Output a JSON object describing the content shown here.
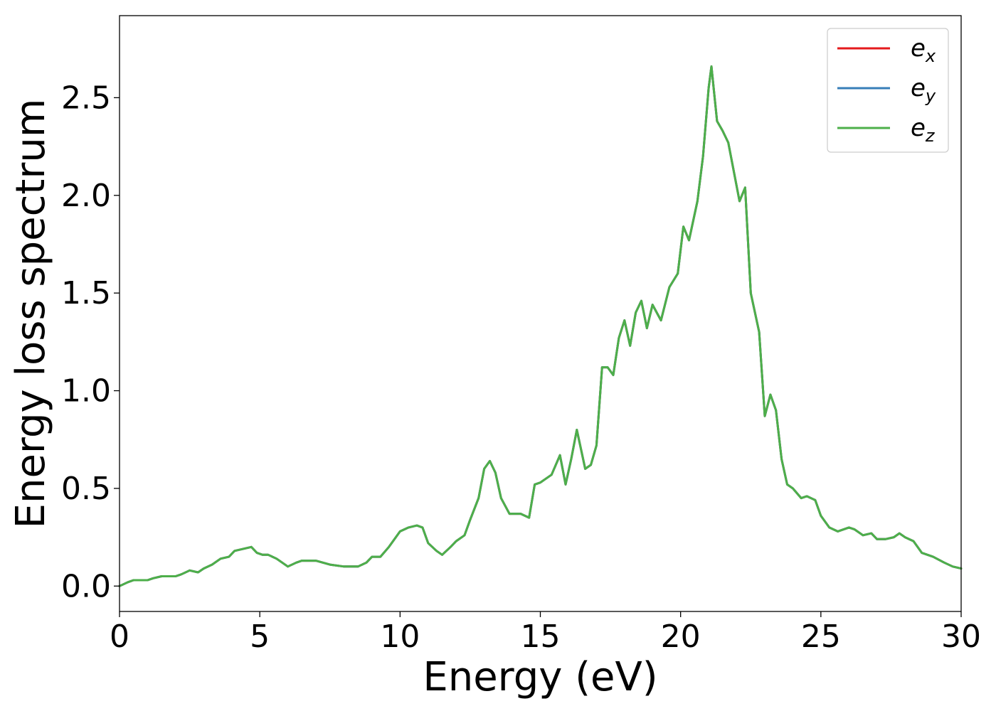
{
  "chart_data": {
    "type": "line",
    "xlabel": "Energy (eV)",
    "ylabel": "Energy loss spectrum",
    "xlim": [
      0,
      30
    ],
    "ylim": [
      -0.13,
      2.92
    ],
    "xticks": [
      0,
      5,
      10,
      15,
      20,
      25,
      30
    ],
    "yticks": [
      0.0,
      0.5,
      1.0,
      1.5,
      2.0,
      2.5
    ],
    "xtick_labels": [
      "0",
      "5",
      "10",
      "15",
      "20",
      "25",
      "30"
    ],
    "ytick_labels": [
      "0.0",
      "0.5",
      "1.0",
      "1.5",
      "2.0",
      "2.5"
    ],
    "grid": false,
    "legend_position": "top-right",
    "series": [
      {
        "name": "ex",
        "label_main": "e",
        "label_sub": "x",
        "color": "#e41a1c",
        "x": [
          0,
          0.3,
          0.5,
          0.7,
          1.0,
          1.2,
          1.5,
          1.7,
          2.0,
          2.2,
          2.5,
          2.8,
          3.0,
          3.3,
          3.6,
          3.9,
          4.1,
          4.4,
          4.7,
          4.9,
          5.1,
          5.3,
          5.6,
          5.8,
          6.0,
          6.3,
          6.5,
          7.0,
          7.5,
          8.0,
          8.5,
          8.8,
          9.0,
          9.3,
          9.6,
          10.0,
          10.3,
          10.6,
          10.8,
          11.0,
          11.3,
          11.5,
          11.8,
          12.0,
          12.3,
          12.5,
          12.8,
          13.0,
          13.2,
          13.4,
          13.6,
          13.9,
          14.1,
          14.3,
          14.6,
          14.8,
          15.0,
          15.2,
          15.4,
          15.7,
          15.9,
          16.1,
          16.3,
          16.6,
          16.8,
          17.0,
          17.2,
          17.4,
          17.6,
          17.8,
          18.0,
          18.2,
          18.4,
          18.6,
          18.8,
          19.0,
          19.3,
          19.6,
          19.9,
          20.1,
          20.3,
          20.6,
          20.8,
          21.0,
          21.1,
          21.3,
          21.5,
          21.7,
          21.9,
          22.1,
          22.3,
          22.5,
          22.8,
          23.0,
          23.2,
          23.4,
          23.6,
          23.8,
          24.0,
          24.3,
          24.5,
          24.8,
          25.0,
          25.3,
          25.6,
          26.0,
          26.2,
          26.5,
          26.8,
          27.0,
          27.3,
          27.6,
          27.8,
          28.0,
          28.3,
          28.6,
          29.0,
          29.4,
          29.7,
          30.0
        ],
        "values": [
          0.0,
          0.02,
          0.03,
          0.03,
          0.03,
          0.04,
          0.05,
          0.05,
          0.05,
          0.06,
          0.08,
          0.07,
          0.09,
          0.11,
          0.14,
          0.15,
          0.18,
          0.19,
          0.2,
          0.17,
          0.16,
          0.16,
          0.14,
          0.12,
          0.1,
          0.12,
          0.13,
          0.13,
          0.11,
          0.1,
          0.1,
          0.12,
          0.15,
          0.15,
          0.2,
          0.28,
          0.3,
          0.31,
          0.3,
          0.22,
          0.18,
          0.16,
          0.2,
          0.23,
          0.26,
          0.34,
          0.45,
          0.6,
          0.64,
          0.58,
          0.45,
          0.37,
          0.37,
          0.37,
          0.35,
          0.52,
          0.53,
          0.55,
          0.57,
          0.67,
          0.52,
          0.65,
          0.8,
          0.6,
          0.62,
          0.72,
          1.12,
          1.12,
          1.08,
          1.27,
          1.36,
          1.23,
          1.4,
          1.46,
          1.32,
          1.44,
          1.36,
          1.53,
          1.6,
          1.84,
          1.77,
          1.97,
          2.2,
          2.55,
          2.66,
          2.38,
          2.33,
          2.27,
          2.12,
          1.97,
          2.04,
          1.5,
          1.3,
          0.87,
          0.98,
          0.9,
          0.65,
          0.52,
          0.5,
          0.45,
          0.46,
          0.44,
          0.36,
          0.3,
          0.28,
          0.3,
          0.29,
          0.26,
          0.27,
          0.24,
          0.24,
          0.25,
          0.27,
          0.25,
          0.23,
          0.17,
          0.15,
          0.12,
          0.1,
          0.09
        ]
      },
      {
        "name": "ey",
        "label_main": "e",
        "label_sub": "y",
        "color": "#377eb8",
        "x": [
          0,
          0.3,
          0.5,
          0.7,
          1.0,
          1.2,
          1.5,
          1.7,
          2.0,
          2.2,
          2.5,
          2.8,
          3.0,
          3.3,
          3.6,
          3.9,
          4.1,
          4.4,
          4.7,
          4.9,
          5.1,
          5.3,
          5.6,
          5.8,
          6.0,
          6.3,
          6.5,
          7.0,
          7.5,
          8.0,
          8.5,
          8.8,
          9.0,
          9.3,
          9.6,
          10.0,
          10.3,
          10.6,
          10.8,
          11.0,
          11.3,
          11.5,
          11.8,
          12.0,
          12.3,
          12.5,
          12.8,
          13.0,
          13.2,
          13.4,
          13.6,
          13.9,
          14.1,
          14.3,
          14.6,
          14.8,
          15.0,
          15.2,
          15.4,
          15.7,
          15.9,
          16.1,
          16.3,
          16.6,
          16.8,
          17.0,
          17.2,
          17.4,
          17.6,
          17.8,
          18.0,
          18.2,
          18.4,
          18.6,
          18.8,
          19.0,
          19.3,
          19.6,
          19.9,
          20.1,
          20.3,
          20.6,
          20.8,
          21.0,
          21.1,
          21.3,
          21.5,
          21.7,
          21.9,
          22.1,
          22.3,
          22.5,
          22.8,
          23.0,
          23.2,
          23.4,
          23.6,
          23.8,
          24.0,
          24.3,
          24.5,
          24.8,
          25.0,
          25.3,
          25.6,
          26.0,
          26.2,
          26.5,
          26.8,
          27.0,
          27.3,
          27.6,
          27.8,
          28.0,
          28.3,
          28.6,
          29.0,
          29.4,
          29.7,
          30.0
        ],
        "values": [
          0.0,
          0.02,
          0.03,
          0.03,
          0.03,
          0.04,
          0.05,
          0.05,
          0.05,
          0.06,
          0.08,
          0.07,
          0.09,
          0.11,
          0.14,
          0.15,
          0.18,
          0.19,
          0.2,
          0.17,
          0.16,
          0.16,
          0.14,
          0.12,
          0.1,
          0.12,
          0.13,
          0.13,
          0.11,
          0.1,
          0.1,
          0.12,
          0.15,
          0.15,
          0.2,
          0.28,
          0.3,
          0.31,
          0.3,
          0.22,
          0.18,
          0.16,
          0.2,
          0.23,
          0.26,
          0.34,
          0.45,
          0.6,
          0.64,
          0.58,
          0.45,
          0.37,
          0.37,
          0.37,
          0.35,
          0.52,
          0.53,
          0.55,
          0.57,
          0.67,
          0.52,
          0.65,
          0.8,
          0.6,
          0.62,
          0.72,
          1.12,
          1.12,
          1.08,
          1.27,
          1.36,
          1.23,
          1.4,
          1.46,
          1.32,
          1.44,
          1.36,
          1.53,
          1.6,
          1.84,
          1.77,
          1.97,
          2.2,
          2.55,
          2.66,
          2.38,
          2.33,
          2.27,
          2.12,
          1.97,
          2.04,
          1.5,
          1.3,
          0.87,
          0.98,
          0.9,
          0.65,
          0.52,
          0.5,
          0.45,
          0.46,
          0.44,
          0.36,
          0.3,
          0.28,
          0.3,
          0.29,
          0.26,
          0.27,
          0.24,
          0.24,
          0.25,
          0.27,
          0.25,
          0.23,
          0.17,
          0.15,
          0.12,
          0.1,
          0.09
        ]
      },
      {
        "name": "ez",
        "label_main": "e",
        "label_sub": "z",
        "color": "#4daf4a",
        "x": [
          0,
          0.3,
          0.5,
          0.7,
          1.0,
          1.2,
          1.5,
          1.7,
          2.0,
          2.2,
          2.5,
          2.8,
          3.0,
          3.3,
          3.6,
          3.9,
          4.1,
          4.4,
          4.7,
          4.9,
          5.1,
          5.3,
          5.6,
          5.8,
          6.0,
          6.3,
          6.5,
          7.0,
          7.5,
          8.0,
          8.5,
          8.8,
          9.0,
          9.3,
          9.6,
          10.0,
          10.3,
          10.6,
          10.8,
          11.0,
          11.3,
          11.5,
          11.8,
          12.0,
          12.3,
          12.5,
          12.8,
          13.0,
          13.2,
          13.4,
          13.6,
          13.9,
          14.1,
          14.3,
          14.6,
          14.8,
          15.0,
          15.2,
          15.4,
          15.7,
          15.9,
          16.1,
          16.3,
          16.6,
          16.8,
          17.0,
          17.2,
          17.4,
          17.6,
          17.8,
          18.0,
          18.2,
          18.4,
          18.6,
          18.8,
          19.0,
          19.3,
          19.6,
          19.9,
          20.1,
          20.3,
          20.6,
          20.8,
          21.0,
          21.1,
          21.3,
          21.5,
          21.7,
          21.9,
          22.1,
          22.3,
          22.5,
          22.8,
          23.0,
          23.2,
          23.4,
          23.6,
          23.8,
          24.0,
          24.3,
          24.5,
          24.8,
          25.0,
          25.3,
          25.6,
          26.0,
          26.2,
          26.5,
          26.8,
          27.0,
          27.3,
          27.6,
          27.8,
          28.0,
          28.3,
          28.6,
          29.0,
          29.4,
          29.7,
          30.0
        ],
        "values": [
          0.0,
          0.02,
          0.03,
          0.03,
          0.03,
          0.04,
          0.05,
          0.05,
          0.05,
          0.06,
          0.08,
          0.07,
          0.09,
          0.11,
          0.14,
          0.15,
          0.18,
          0.19,
          0.2,
          0.17,
          0.16,
          0.16,
          0.14,
          0.12,
          0.1,
          0.12,
          0.13,
          0.13,
          0.11,
          0.1,
          0.1,
          0.12,
          0.15,
          0.15,
          0.2,
          0.28,
          0.3,
          0.31,
          0.3,
          0.22,
          0.18,
          0.16,
          0.2,
          0.23,
          0.26,
          0.34,
          0.45,
          0.6,
          0.64,
          0.58,
          0.45,
          0.37,
          0.37,
          0.37,
          0.35,
          0.52,
          0.53,
          0.55,
          0.57,
          0.67,
          0.52,
          0.65,
          0.8,
          0.6,
          0.62,
          0.72,
          1.12,
          1.12,
          1.08,
          1.27,
          1.36,
          1.23,
          1.4,
          1.46,
          1.32,
          1.44,
          1.36,
          1.53,
          1.6,
          1.84,
          1.77,
          1.97,
          2.2,
          2.55,
          2.66,
          2.38,
          2.33,
          2.27,
          2.12,
          1.97,
          2.04,
          1.5,
          1.3,
          0.87,
          0.98,
          0.9,
          0.65,
          0.52,
          0.5,
          0.45,
          0.46,
          0.44,
          0.36,
          0.3,
          0.28,
          0.3,
          0.29,
          0.26,
          0.27,
          0.24,
          0.24,
          0.25,
          0.27,
          0.25,
          0.23,
          0.17,
          0.15,
          0.12,
          0.1,
          0.09
        ]
      }
    ]
  }
}
